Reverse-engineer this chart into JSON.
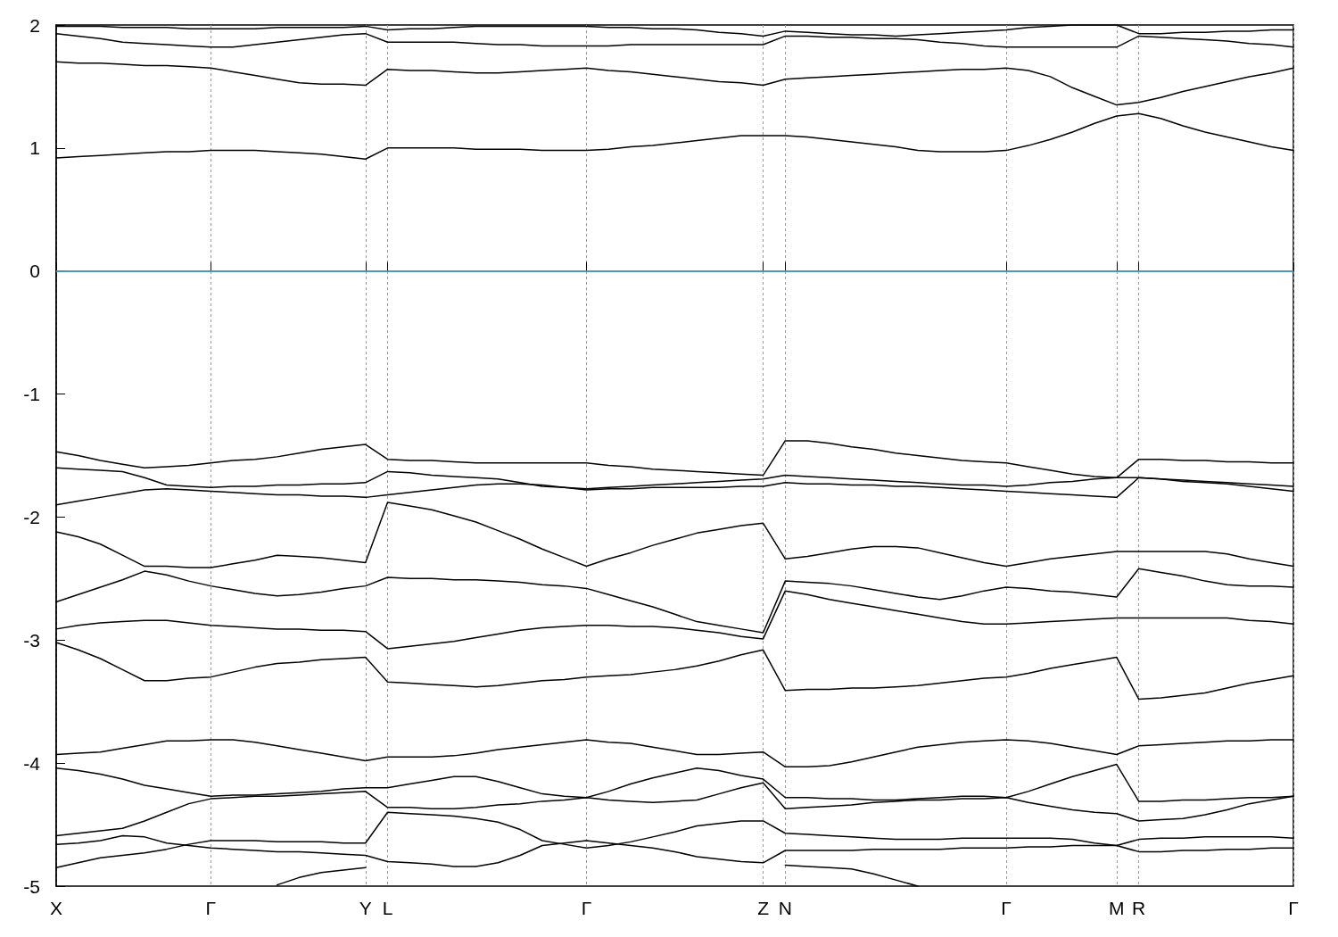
{
  "chart_data": {
    "type": "line",
    "marker": "none",
    "line_style": "solid",
    "grid": "x",
    "categories": [
      "X",
      null,
      null,
      null,
      null,
      null,
      null,
      "Γ",
      null,
      null,
      null,
      null,
      null,
      null,
      "Y",
      "L",
      null,
      null,
      null,
      null,
      null,
      null,
      null,
      null,
      "Γ",
      null,
      null,
      null,
      null,
      null,
      null,
      null,
      "Z",
      "N",
      null,
      null,
      null,
      null,
      null,
      null,
      null,
      null,
      null,
      "Γ",
      null,
      null,
      null,
      null,
      "M",
      "R",
      null,
      null,
      null,
      null,
      null,
      null,
      "Γ"
    ],
    "ylim": [
      -5,
      2
    ],
    "yticks": [
      -5,
      -4,
      -3,
      -2,
      -1,
      0,
      1,
      2
    ],
    "ref_lines": [
      {
        "axis": "y",
        "value": 0,
        "color": "#56b4e9"
      }
    ],
    "series": [
      {
        "color": "#000000",
        "values": [
          1.99,
          1.99,
          1.99,
          1.98,
          1.98,
          1.98,
          1.97,
          1.97,
          1.97,
          1.97,
          1.98,
          1.98,
          1.98,
          1.98,
          1.99,
          1.96,
          1.97,
          1.97,
          1.98,
          1.99,
          1.99,
          1.99,
          1.99,
          1.99,
          1.99,
          1.98,
          1.98,
          1.97,
          1.97,
          1.96,
          1.94,
          1.93,
          1.91,
          1.95,
          1.94,
          1.93,
          1.92,
          1.92,
          1.91,
          1.92,
          1.93,
          1.94,
          1.95,
          1.96,
          1.98,
          1.99,
          2.0,
          2.0,
          2.0,
          1.93,
          1.93,
          1.94,
          1.94,
          1.95,
          1.95,
          1.96,
          1.96
        ]
      },
      {
        "color": "#000000",
        "values": [
          1.93,
          1.91,
          1.89,
          1.86,
          1.85,
          1.84,
          1.83,
          1.82,
          1.82,
          1.84,
          1.86,
          1.88,
          1.9,
          1.92,
          1.93,
          1.86,
          1.86,
          1.86,
          1.86,
          1.85,
          1.84,
          1.84,
          1.83,
          1.83,
          1.83,
          1.83,
          1.84,
          1.84,
          1.84,
          1.84,
          1.84,
          1.84,
          1.84,
          1.91,
          1.91,
          1.9,
          1.9,
          1.89,
          1.89,
          1.88,
          1.86,
          1.85,
          1.83,
          1.82,
          1.82,
          1.82,
          1.82,
          1.82,
          1.82,
          1.91,
          1.9,
          1.89,
          1.88,
          1.87,
          1.85,
          1.84,
          1.82
        ]
      },
      {
        "color": "#000000",
        "values": [
          1.7,
          1.69,
          1.69,
          1.68,
          1.67,
          1.67,
          1.66,
          1.65,
          1.62,
          1.59,
          1.56,
          1.53,
          1.52,
          1.52,
          1.51,
          1.64,
          1.63,
          1.63,
          1.62,
          1.61,
          1.61,
          1.62,
          1.63,
          1.64,
          1.65,
          1.63,
          1.62,
          1.6,
          1.58,
          1.56,
          1.54,
          1.53,
          1.51,
          1.56,
          1.57,
          1.58,
          1.59,
          1.6,
          1.61,
          1.62,
          1.63,
          1.64,
          1.64,
          1.65,
          1.63,
          1.58,
          1.49,
          1.42,
          1.35,
          1.37,
          1.41,
          1.46,
          1.5,
          1.54,
          1.58,
          1.61,
          1.65
        ]
      },
      {
        "color": "#000000",
        "values": [
          0.92,
          0.93,
          0.94,
          0.95,
          0.96,
          0.97,
          0.97,
          0.98,
          0.98,
          0.98,
          0.97,
          0.96,
          0.95,
          0.93,
          0.91,
          1.0,
          1.0,
          1.0,
          1.0,
          0.99,
          0.99,
          0.99,
          0.98,
          0.98,
          0.98,
          0.99,
          1.01,
          1.02,
          1.04,
          1.06,
          1.08,
          1.1,
          1.1,
          1.1,
          1.09,
          1.07,
          1.05,
          1.03,
          1.01,
          0.98,
          0.97,
          0.97,
          0.97,
          0.98,
          1.02,
          1.07,
          1.13,
          1.2,
          1.26,
          1.28,
          1.24,
          1.18,
          1.13,
          1.09,
          1.05,
          1.01,
          0.98
        ]
      },
      {
        "color": "#000000",
        "values": [
          -1.47,
          -1.5,
          -1.54,
          -1.57,
          -1.6,
          -1.59,
          -1.58,
          -1.56,
          -1.54,
          -1.53,
          -1.51,
          -1.48,
          -1.45,
          -1.43,
          -1.41,
          -1.53,
          -1.54,
          -1.54,
          -1.55,
          -1.56,
          -1.56,
          -1.56,
          -1.56,
          -1.56,
          -1.56,
          -1.58,
          -1.59,
          -1.61,
          -1.62,
          -1.63,
          -1.64,
          -1.65,
          -1.66,
          -1.38,
          -1.38,
          -1.4,
          -1.43,
          -1.45,
          -1.48,
          -1.5,
          -1.52,
          -1.54,
          -1.55,
          -1.56,
          -1.59,
          -1.62,
          -1.65,
          -1.67,
          -1.68,
          -1.53,
          -1.53,
          -1.54,
          -1.54,
          -1.55,
          -1.55,
          -1.56,
          -1.56
        ]
      },
      {
        "color": "#000000",
        "values": [
          -1.6,
          -1.61,
          -1.62,
          -1.63,
          -1.68,
          -1.74,
          -1.75,
          -1.76,
          -1.75,
          -1.75,
          -1.74,
          -1.74,
          -1.73,
          -1.73,
          -1.72,
          -1.63,
          -1.64,
          -1.66,
          -1.67,
          -1.68,
          -1.69,
          -1.72,
          -1.75,
          -1.76,
          -1.77,
          -1.76,
          -1.75,
          -1.74,
          -1.73,
          -1.72,
          -1.71,
          -1.7,
          -1.69,
          -1.66,
          -1.67,
          -1.68,
          -1.69,
          -1.7,
          -1.71,
          -1.72,
          -1.73,
          -1.74,
          -1.74,
          -1.75,
          -1.74,
          -1.72,
          -1.71,
          -1.69,
          -1.68,
          -1.68,
          -1.69,
          -1.7,
          -1.71,
          -1.72,
          -1.73,
          -1.74,
          -1.75
        ]
      },
      {
        "color": "#000000",
        "values": [
          -1.9,
          -1.87,
          -1.84,
          -1.81,
          -1.78,
          -1.77,
          -1.78,
          -1.79,
          -1.8,
          -1.81,
          -1.82,
          -1.82,
          -1.83,
          -1.83,
          -1.84,
          -1.82,
          -1.8,
          -1.78,
          -1.76,
          -1.74,
          -1.73,
          -1.73,
          -1.74,
          -1.76,
          -1.78,
          -1.77,
          -1.77,
          -1.76,
          -1.76,
          -1.76,
          -1.76,
          -1.75,
          -1.75,
          -1.72,
          -1.73,
          -1.73,
          -1.74,
          -1.74,
          -1.75,
          -1.75,
          -1.76,
          -1.77,
          -1.78,
          -1.79,
          -1.8,
          -1.81,
          -1.82,
          -1.83,
          -1.84,
          -1.68,
          -1.69,
          -1.71,
          -1.72,
          -1.73,
          -1.75,
          -1.77,
          -1.79
        ]
      },
      {
        "color": "#000000",
        "values": [
          -2.12,
          -2.16,
          -2.22,
          -2.31,
          -2.4,
          -2.4,
          -2.41,
          -2.41,
          -2.38,
          -2.35,
          -2.31,
          -2.32,
          -2.33,
          -2.35,
          -2.37,
          -1.88,
          -1.91,
          -1.94,
          -1.99,
          -2.04,
          -2.11,
          -2.18,
          -2.26,
          -2.33,
          -2.4,
          -2.34,
          -2.29,
          -2.23,
          -2.18,
          -2.13,
          -2.1,
          -2.07,
          -2.05,
          -2.34,
          -2.32,
          -2.29,
          -2.26,
          -2.24,
          -2.24,
          -2.25,
          -2.29,
          -2.33,
          -2.37,
          -2.4,
          -2.37,
          -2.34,
          -2.32,
          -2.3,
          -2.28,
          -2.28,
          -2.28,
          -2.28,
          -2.28,
          -2.3,
          -2.34,
          -2.37,
          -2.4
        ]
      },
      {
        "color": "#000000",
        "values": [
          -2.69,
          -2.63,
          -2.57,
          -2.51,
          -2.44,
          -2.47,
          -2.52,
          -2.56,
          -2.59,
          -2.62,
          -2.64,
          -2.63,
          -2.61,
          -2.58,
          -2.56,
          -2.49,
          -2.5,
          -2.5,
          -2.51,
          -2.51,
          -2.52,
          -2.53,
          -2.55,
          -2.56,
          -2.58,
          -2.63,
          -2.68,
          -2.73,
          -2.79,
          -2.85,
          -2.88,
          -2.91,
          -2.94,
          -2.52,
          -2.53,
          -2.54,
          -2.56,
          -2.59,
          -2.62,
          -2.65,
          -2.67,
          -2.64,
          -2.6,
          -2.57,
          -2.58,
          -2.6,
          -2.61,
          -2.63,
          -2.65,
          -2.42,
          -2.45,
          -2.48,
          -2.52,
          -2.55,
          -2.56,
          -2.56,
          -2.57
        ]
      },
      {
        "color": "#000000",
        "values": [
          -2.91,
          -2.88,
          -2.86,
          -2.85,
          -2.84,
          -2.84,
          -2.86,
          -2.88,
          -2.89,
          -2.9,
          -2.91,
          -2.91,
          -2.92,
          -2.92,
          -2.93,
          -3.07,
          -3.05,
          -3.03,
          -3.01,
          -2.98,
          -2.95,
          -2.92,
          -2.9,
          -2.89,
          -2.88,
          -2.88,
          -2.89,
          -2.89,
          -2.9,
          -2.92,
          -2.94,
          -2.97,
          -2.99,
          -2.6,
          -2.63,
          -2.67,
          -2.7,
          -2.73,
          -2.76,
          -2.79,
          -2.82,
          -2.85,
          -2.87,
          -2.87,
          -2.86,
          -2.85,
          -2.84,
          -2.83,
          -2.82,
          -2.82,
          -2.82,
          -2.82,
          -2.82,
          -2.82,
          -2.84,
          -2.85,
          -2.87
        ]
      },
      {
        "color": "#000000",
        "values": [
          -3.02,
          -3.08,
          -3.15,
          -3.24,
          -3.33,
          -3.33,
          -3.31,
          -3.3,
          -3.26,
          -3.22,
          -3.19,
          -3.18,
          -3.16,
          -3.15,
          -3.14,
          -3.34,
          -3.35,
          -3.36,
          -3.37,
          -3.38,
          -3.37,
          -3.35,
          -3.33,
          -3.32,
          -3.3,
          -3.29,
          -3.28,
          -3.26,
          -3.24,
          -3.21,
          -3.17,
          -3.12,
          -3.08,
          -3.41,
          -3.4,
          -3.4,
          -3.39,
          -3.39,
          -3.38,
          -3.37,
          -3.35,
          -3.33,
          -3.31,
          -3.3,
          -3.27,
          -3.23,
          -3.2,
          -3.17,
          -3.14,
          -3.48,
          -3.47,
          -3.45,
          -3.43,
          -3.39,
          -3.35,
          -3.32,
          -3.29
        ]
      },
      {
        "color": "#000000",
        "values": [
          -3.93,
          -3.92,
          -3.91,
          -3.88,
          -3.85,
          -3.82,
          -3.82,
          -3.81,
          -3.81,
          -3.83,
          -3.86,
          -3.89,
          -3.92,
          -3.95,
          -3.98,
          -3.95,
          -3.95,
          -3.95,
          -3.94,
          -3.92,
          -3.89,
          -3.87,
          -3.85,
          -3.83,
          -3.81,
          -3.83,
          -3.84,
          -3.87,
          -3.9,
          -3.93,
          -3.93,
          -3.92,
          -3.91,
          -4.03,
          -4.03,
          -4.02,
          -3.99,
          -3.95,
          -3.91,
          -3.87,
          -3.85,
          -3.83,
          -3.82,
          -3.81,
          -3.82,
          -3.84,
          -3.87,
          -3.9,
          -3.93,
          -3.86,
          -3.85,
          -3.84,
          -3.83,
          -3.82,
          -3.82,
          -3.81,
          -3.81
        ]
      },
      {
        "color": "#000000",
        "values": [
          -4.04,
          -4.06,
          -4.09,
          -4.13,
          -4.18,
          -4.21,
          -4.24,
          -4.27,
          -4.26,
          -4.26,
          -4.25,
          -4.24,
          -4.23,
          -4.21,
          -4.2,
          -4.2,
          -4.17,
          -4.14,
          -4.11,
          -4.11,
          -4.15,
          -4.2,
          -4.25,
          -4.27,
          -4.28,
          -4.23,
          -4.17,
          -4.12,
          -4.08,
          -4.04,
          -4.06,
          -4.1,
          -4.13,
          -4.28,
          -4.28,
          -4.29,
          -4.29,
          -4.3,
          -4.3,
          -4.29,
          -4.28,
          -4.27,
          -4.27,
          -4.28,
          -4.23,
          -4.17,
          -4.11,
          -4.06,
          -4.01,
          -4.31,
          -4.31,
          -4.3,
          -4.3,
          -4.29,
          -4.28,
          -4.28,
          -4.27
        ]
      },
      {
        "color": "#000000",
        "values": [
          -4.59,
          -4.57,
          -4.55,
          -4.53,
          -4.47,
          -4.4,
          -4.33,
          -4.29,
          -4.28,
          -4.27,
          -4.27,
          -4.26,
          -4.25,
          -4.24,
          -4.23,
          -4.36,
          -4.36,
          -4.37,
          -4.37,
          -4.36,
          -4.34,
          -4.33,
          -4.31,
          -4.3,
          -4.28,
          -4.3,
          -4.31,
          -4.32,
          -4.31,
          -4.3,
          -4.25,
          -4.2,
          -4.16,
          -4.37,
          -4.36,
          -4.35,
          -4.34,
          -4.32,
          -4.31,
          -4.3,
          -4.3,
          -4.29,
          -4.29,
          -4.28,
          -4.32,
          -4.35,
          -4.38,
          -4.4,
          -4.41,
          -4.47,
          -4.46,
          -4.45,
          -4.42,
          -4.38,
          -4.33,
          -4.3,
          -4.27
        ]
      },
      {
        "color": "#000000",
        "values": [
          -4.85,
          -4.81,
          -4.77,
          -4.75,
          -4.73,
          -4.7,
          -4.66,
          -4.63,
          -4.63,
          -4.63,
          -4.64,
          -4.64,
          -4.64,
          -4.65,
          -4.65,
          -4.4,
          -4.41,
          -4.42,
          -4.43,
          -4.45,
          -4.48,
          -4.54,
          -4.63,
          -4.66,
          -4.69,
          -4.67,
          -4.64,
          -4.6,
          -4.56,
          -4.51,
          -4.49,
          -4.47,
          -4.47,
          -4.57,
          -4.58,
          -4.59,
          -4.6,
          -4.61,
          -4.62,
          -4.62,
          -4.62,
          -4.61,
          -4.61,
          -4.61,
          -4.61,
          -4.61,
          -4.62,
          -4.65,
          -4.67,
          -4.62,
          -4.61,
          -4.61,
          -4.6,
          -4.6,
          -4.6,
          -4.6,
          -4.61
        ]
      },
      {
        "color": "#000000",
        "values": [
          -4.66,
          -4.65,
          -4.63,
          -4.59,
          -4.6,
          -4.65,
          -4.67,
          -4.69,
          -4.7,
          -4.71,
          -4.72,
          -4.72,
          -4.73,
          -4.74,
          -4.75,
          -4.8,
          -4.81,
          -4.82,
          -4.84,
          -4.84,
          -4.81,
          -4.75,
          -4.67,
          -4.65,
          -4.63,
          -4.65,
          -4.67,
          -4.69,
          -4.72,
          -4.76,
          -4.78,
          -4.8,
          -4.81,
          -4.71,
          -4.71,
          -4.71,
          -4.71,
          -4.7,
          -4.7,
          -4.7,
          -4.7,
          -4.69,
          -4.69,
          -4.69,
          -4.68,
          -4.68,
          -4.67,
          -4.67,
          -4.67,
          -4.72,
          -4.72,
          -4.71,
          -4.71,
          -4.7,
          -4.7,
          -4.69,
          -4.69
        ]
      },
      {
        "color": "#000000",
        "values": [
          null,
          null,
          null,
          null,
          null,
          null,
          null,
          null,
          null,
          null,
          -4.99,
          -4.93,
          -4.89,
          -4.87,
          -4.85,
          null,
          null,
          null,
          null,
          null,
          null,
          null,
          null,
          null,
          null,
          null,
          null,
          null,
          null,
          null,
          null,
          null,
          null,
          -4.83,
          -4.84,
          -4.85,
          -4.86,
          -4.9,
          -4.95,
          -5.0,
          null,
          null,
          null,
          null,
          null,
          null,
          null,
          null,
          null,
          null,
          null,
          null,
          null,
          null,
          null,
          null,
          null
        ]
      }
    ]
  }
}
